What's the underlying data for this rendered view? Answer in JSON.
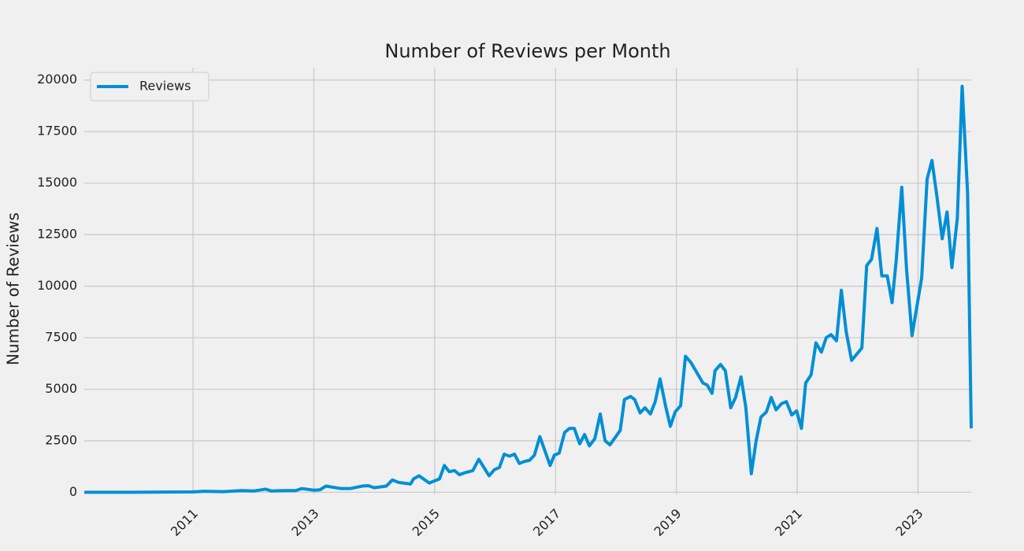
{
  "chart_data": {
    "type": "line",
    "title": "Number of Reviews per Month",
    "ylabel": "Number of Reviews",
    "x": [
      2009.2,
      2009.6,
      2010.0,
      2010.5,
      2011.0,
      2011.2,
      2011.5,
      2011.8,
      2012.0,
      2012.2,
      2012.3,
      2012.5,
      2012.7,
      2012.8,
      2013.0,
      2013.1,
      2013.2,
      2013.3,
      2013.45,
      2013.6,
      2013.8,
      2013.9,
      2014.0,
      2014.2,
      2014.3,
      2014.4,
      2014.6,
      2014.65,
      2014.74,
      2014.91,
      2015.08,
      2015.16,
      2015.24,
      2015.33,
      2015.41,
      2015.5,
      2015.63,
      2015.73,
      2015.9,
      2015.99,
      2016.07,
      2016.15,
      2016.24,
      2016.32,
      2016.4,
      2016.49,
      2016.57,
      2016.65,
      2016.74,
      2016.91,
      2016.98,
      2017.06,
      2017.15,
      2017.23,
      2017.31,
      2017.4,
      2017.48,
      2017.56,
      2017.65,
      2017.74,
      2017.82,
      2017.9,
      2018.07,
      2018.14,
      2018.24,
      2018.31,
      2018.4,
      2018.48,
      2018.57,
      2018.65,
      2018.73,
      2018.82,
      2018.9,
      2018.98,
      2019.07,
      2019.15,
      2019.24,
      2019.44,
      2019.51,
      2019.59,
      2019.64,
      2019.73,
      2019.81,
      2019.9,
      2019.98,
      2020.07,
      2020.15,
      2020.24,
      2020.32,
      2020.4,
      2020.49,
      2020.57,
      2020.65,
      2020.74,
      2020.82,
      2020.91,
      2020.99,
      2021.07,
      2021.14,
      2021.23,
      2021.31,
      2021.4,
      2021.48,
      2021.56,
      2021.65,
      2021.73,
      2021.81,
      2021.9,
      2022.07,
      2022.15,
      2022.23,
      2022.32,
      2022.4,
      2022.49,
      2022.57,
      2022.64,
      2022.73,
      2022.81,
      2022.9,
      2022.98,
      2023.06,
      2023.15,
      2023.23,
      2023.31,
      2023.4,
      2023.48,
      2023.56,
      2023.65,
      2023.73,
      2023.82,
      2023.88
    ],
    "series": [
      {
        "name": "Reviews",
        "color": "#008fd5",
        "values": [
          0,
          0,
          0,
          10,
          20,
          50,
          30,
          80,
          60,
          150,
          60,
          80,
          80,
          180,
          100,
          120,
          300,
          250,
          180,
          180,
          300,
          320,
          220,
          300,
          600,
          480,
          400,
          650,
          800,
          450,
          650,
          1300,
          1000,
          1050,
          850,
          950,
          1050,
          1600,
          800,
          1100,
          1200,
          1850,
          1750,
          1850,
          1400,
          1500,
          1550,
          1800,
          2700,
          1300,
          1800,
          1900,
          2900,
          3100,
          3100,
          2350,
          2800,
          2250,
          2600,
          3800,
          2500,
          2300,
          3000,
          4500,
          4650,
          4500,
          3850,
          4100,
          3800,
          4400,
          5500,
          4200,
          3200,
          3900,
          4200,
          6600,
          6300,
          5300,
          5200,
          4800,
          5900,
          6200,
          5900,
          4100,
          4600,
          5600,
          4100,
          900,
          2500,
          3650,
          3900,
          4600,
          4000,
          4300,
          4400,
          3750,
          3950,
          3100,
          5300,
          5700,
          7250,
          6800,
          7500,
          7650,
          7350,
          9800,
          7800,
          6400,
          7000,
          11000,
          11300,
          12800,
          10500,
          10500,
          9200,
          11300,
          14800,
          10800,
          7600,
          9000,
          10400,
          15200,
          16100,
          14400,
          12300,
          13600,
          10900,
          13300,
          19700,
          14500,
          3100
        ]
      }
    ],
    "xlim": [
      2009.2,
      2023.88
    ],
    "xticks": [
      2011,
      2013,
      2015,
      2017,
      2019,
      2021,
      2023
    ],
    "ylim": [
      -100,
      20600
    ],
    "yticks": [
      0,
      2500,
      5000,
      7500,
      10000,
      12500,
      15000,
      17500,
      20000
    ],
    "grid": true,
    "legend": "upper left"
  }
}
